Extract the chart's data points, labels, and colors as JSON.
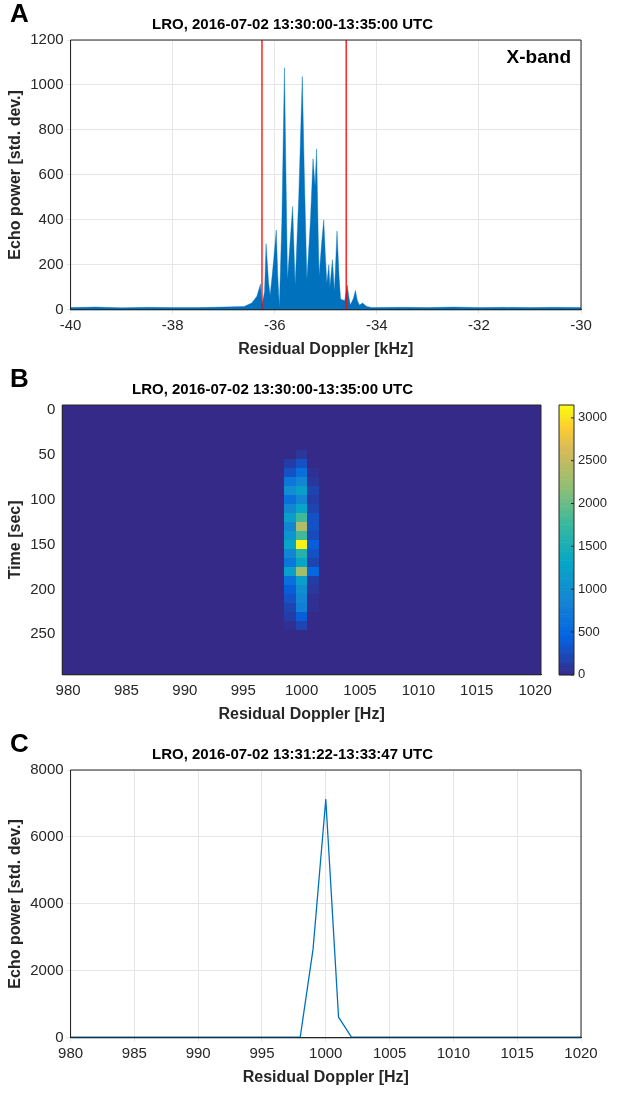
{
  "chart_data": [
    {
      "type": "area",
      "title": "LRO, 2016-07-02 13:30:00-13:35:00 UTC",
      "xlabel": "Residual Doppler [kHz]",
      "ylabel": "Echo power [std. dev.]",
      "x": [
        -40,
        -39.5,
        -39,
        -38.5,
        -38,
        -37.5,
        -37,
        -36.6,
        -36.45,
        -36.35,
        -36.28,
        -36.25,
        -36.2,
        -36.17,
        -36.12,
        -36.09,
        -36.03,
        -35.97,
        -35.94,
        -35.91,
        -35.86,
        -35.81,
        -35.78,
        -35.75,
        -35.7,
        -35.65,
        -35.62,
        -35.6,
        -35.53,
        -35.46,
        -35.42,
        -35.37,
        -35.3,
        -35.25,
        -35.21,
        -35.18,
        -35.15,
        -35.13,
        -35.08,
        -35.04,
        -35.01,
        -34.98,
        -34.94,
        -34.92,
        -34.87,
        -34.83,
        -34.78,
        -34.74,
        -34.71,
        -34.63,
        -34.58,
        -34.55,
        -34.52,
        -34.46,
        -34.42,
        -34.38,
        -34.34,
        -34.28,
        -34.2,
        -34.1,
        -33.5,
        -33,
        -32.5,
        -32,
        -31.5,
        -31,
        -30.5,
        -30
      ],
      "series": [
        {
          "color": "#0072bd",
          "values": [
            10,
            12,
            9,
            11,
            10,
            10,
            12,
            15,
            30,
            60,
            114,
            20,
            80,
            294,
            120,
            65,
            200,
            355,
            150,
            12,
            400,
            1077,
            600,
            135,
            300,
            460,
            250,
            110,
            500,
            1038,
            600,
            135,
            400,
            672,
            550,
            716,
            350,
            153,
            300,
            400,
            250,
            118,
            200,
            100,
            223,
            83,
            350,
            150,
            48,
            40,
            109,
            60,
            21,
            50,
            86,
            40,
            21,
            30,
            15,
            10,
            11,
            10,
            12,
            10,
            11,
            10,
            11,
            10
          ]
        }
      ],
      "xlim": [
        -40,
        -30
      ],
      "xticks": [
        -40,
        -38,
        -36,
        -34,
        -32,
        -30
      ],
      "ylim": [
        0,
        1200
      ],
      "yticks": [
        0,
        200,
        400,
        600,
        800,
        1000,
        1200
      ],
      "grid": true,
      "ref_lines": [
        {
          "axis": "x",
          "value": -36.25,
          "color": "#ff0000"
        },
        {
          "axis": "x",
          "value": -34.6,
          "color": "#ff0000"
        }
      ],
      "annotations": [
        "A",
        "X-band"
      ]
    },
    {
      "type": "heatmap",
      "title": "LRO, 2016-07-02 13:30:00-13:35:00 UTC",
      "xlabel": "Residual Doppler [Hz]",
      "ylabel": "Time [sec]",
      "categories": [
        "980",
        null,
        null,
        null,
        null,
        "985",
        null,
        null,
        null,
        null,
        "990",
        null,
        null,
        null,
        null,
        "995",
        null,
        null,
        null,
        null,
        "1000",
        null,
        null,
        null,
        null,
        "1005",
        null,
        null,
        null,
        null,
        "1010",
        null,
        null,
        null,
        null,
        "1015",
        null,
        null,
        null,
        null,
        "1020"
      ],
      "y_categories": [
        "0",
        null,
        null,
        null,
        null,
        "50",
        null,
        null,
        null,
        null,
        "100",
        null,
        null,
        null,
        null,
        "150",
        null,
        null,
        null,
        null,
        "200",
        null,
        null,
        null,
        null,
        "250",
        null,
        null,
        null,
        null
      ],
      "cells": [
        [
          0,
          0,
          0,
          0,
          0,
          0,
          0,
          0,
          0,
          0,
          0,
          0,
          0,
          0,
          0,
          0,
          0,
          0,
          0,
          0,
          0,
          0,
          0,
          0,
          0,
          0,
          0,
          0,
          0,
          0,
          0,
          0,
          0,
          0,
          0,
          0,
          0,
          0,
          0,
          0,
          0
        ],
        [
          0,
          0,
          0,
          0,
          0,
          0,
          0,
          0,
          0,
          0,
          0,
          0,
          0,
          0,
          0,
          0,
          0,
          0,
          0,
          0,
          0,
          0,
          0,
          0,
          0,
          0,
          0,
          0,
          0,
          0,
          0,
          0,
          0,
          0,
          0,
          0,
          0,
          0,
          0,
          0,
          0
        ],
        [
          0,
          0,
          0,
          0,
          0,
          0,
          0,
          0,
          0,
          0,
          0,
          0,
          0,
          0,
          0,
          0,
          0,
          0,
          0,
          0,
          0,
          0,
          0,
          0,
          0,
          0,
          0,
          0,
          0,
          0,
          0,
          0,
          0,
          0,
          0,
          0,
          0,
          0,
          0,
          0,
          0
        ],
        [
          0,
          0,
          0,
          0,
          0,
          0,
          0,
          0,
          0,
          0,
          0,
          0,
          0,
          0,
          0,
          0,
          0,
          0,
          0,
          0,
          0,
          0,
          0,
          0,
          0,
          0,
          0,
          0,
          0,
          0,
          0,
          0,
          0,
          0,
          0,
          0,
          0,
          0,
          0,
          0,
          0
        ],
        [
          0,
          0,
          0,
          0,
          0,
          0,
          0,
          0,
          0,
          0,
          0,
          0,
          0,
          0,
          0,
          0,
          0,
          0,
          0,
          0,
          0,
          0,
          0,
          0,
          0,
          0,
          0,
          0,
          0,
          0,
          0,
          0,
          0,
          0,
          0,
          0,
          0,
          0,
          0,
          0,
          0
        ],
        [
          0,
          0,
          0,
          0,
          0,
          0,
          0,
          0,
          0,
          0,
          0,
          0,
          0,
          0,
          0,
          0,
          0,
          0,
          0,
          0,
          100,
          0,
          0,
          0,
          0,
          0,
          0,
          0,
          0,
          0,
          0,
          0,
          0,
          0,
          0,
          0,
          0,
          0,
          0,
          0,
          0
        ],
        [
          0,
          0,
          0,
          0,
          0,
          0,
          0,
          0,
          0,
          0,
          0,
          0,
          0,
          0,
          0,
          0,
          0,
          0,
          0,
          150,
          300,
          0,
          0,
          0,
          0,
          0,
          0,
          0,
          0,
          0,
          0,
          0,
          0,
          0,
          0,
          0,
          0,
          0,
          0,
          0,
          0
        ],
        [
          0,
          0,
          0,
          0,
          0,
          0,
          0,
          0,
          0,
          0,
          0,
          0,
          0,
          0,
          0,
          0,
          0,
          0,
          0,
          300,
          600,
          50,
          0,
          0,
          0,
          0,
          0,
          0,
          0,
          0,
          0,
          0,
          0,
          0,
          0,
          0,
          0,
          0,
          0,
          0,
          0
        ],
        [
          0,
          0,
          0,
          0,
          0,
          0,
          0,
          0,
          0,
          0,
          0,
          0,
          0,
          0,
          0,
          0,
          0,
          0,
          0,
          700,
          900,
          100,
          0,
          0,
          0,
          0,
          0,
          0,
          0,
          0,
          0,
          0,
          0,
          0,
          0,
          0,
          0,
          0,
          0,
          0,
          0
        ],
        [
          0,
          0,
          0,
          0,
          0,
          0,
          0,
          0,
          0,
          0,
          0,
          0,
          0,
          0,
          0,
          0,
          0,
          0,
          0,
          1000,
          1200,
          200,
          0,
          0,
          0,
          0,
          0,
          0,
          0,
          0,
          0,
          0,
          0,
          0,
          0,
          0,
          0,
          0,
          0,
          0,
          0
        ],
        [
          0,
          0,
          0,
          0,
          0,
          0,
          0,
          0,
          0,
          0,
          0,
          0,
          0,
          0,
          0,
          0,
          0,
          0,
          0,
          600,
          900,
          150,
          0,
          0,
          0,
          0,
          0,
          0,
          0,
          0,
          0,
          0,
          0,
          0,
          0,
          0,
          0,
          0,
          0,
          0,
          0
        ],
        [
          0,
          0,
          0,
          0,
          0,
          0,
          0,
          0,
          0,
          0,
          0,
          0,
          0,
          0,
          0,
          0,
          0,
          0,
          0,
          900,
          1300,
          200,
          0,
          0,
          0,
          0,
          0,
          0,
          0,
          0,
          0,
          0,
          0,
          0,
          0,
          0,
          0,
          0,
          0,
          0,
          0
        ],
        [
          0,
          0,
          0,
          0,
          0,
          0,
          0,
          0,
          0,
          0,
          0,
          0,
          0,
          0,
          0,
          0,
          0,
          0,
          0,
          1200,
          1800,
          300,
          0,
          0,
          0,
          0,
          0,
          0,
          0,
          0,
          0,
          0,
          0,
          0,
          0,
          0,
          0,
          0,
          0,
          0,
          0
        ],
        [
          0,
          0,
          0,
          0,
          0,
          0,
          0,
          0,
          0,
          0,
          0,
          0,
          0,
          0,
          0,
          0,
          0,
          0,
          0,
          900,
          2400,
          300,
          0,
          0,
          0,
          0,
          0,
          0,
          0,
          0,
          0,
          0,
          0,
          0,
          0,
          0,
          0,
          0,
          0,
          0,
          0
        ],
        [
          0,
          0,
          0,
          0,
          0,
          0,
          0,
          0,
          0,
          0,
          0,
          0,
          0,
          0,
          0,
          0,
          0,
          0,
          0,
          1100,
          1800,
          250,
          0,
          0,
          0,
          0,
          0,
          0,
          0,
          0,
          0,
          0,
          0,
          0,
          0,
          0,
          0,
          0,
          0,
          0,
          0
        ],
        [
          0,
          0,
          0,
          0,
          0,
          0,
          0,
          0,
          0,
          0,
          0,
          0,
          0,
          0,
          0,
          0,
          0,
          0,
          0,
          1300,
          3100,
          400,
          0,
          0,
          0,
          0,
          0,
          0,
          0,
          0,
          0,
          0,
          0,
          0,
          0,
          0,
          0,
          0,
          0,
          0,
          0
        ],
        [
          0,
          0,
          0,
          0,
          0,
          0,
          0,
          0,
          0,
          0,
          0,
          0,
          0,
          0,
          0,
          0,
          0,
          0,
          0,
          900,
          1600,
          300,
          0,
          0,
          0,
          0,
          0,
          0,
          0,
          0,
          0,
          0,
          0,
          0,
          0,
          0,
          0,
          0,
          0,
          0,
          0
        ],
        [
          0,
          0,
          0,
          0,
          0,
          0,
          0,
          0,
          0,
          0,
          0,
          0,
          0,
          0,
          0,
          0,
          0,
          0,
          0,
          700,
          1300,
          200,
          0,
          0,
          0,
          0,
          0,
          0,
          0,
          0,
          0,
          0,
          0,
          0,
          0,
          0,
          0,
          0,
          0,
          0,
          0
        ],
        [
          0,
          0,
          0,
          0,
          0,
          0,
          0,
          0,
          0,
          0,
          0,
          0,
          0,
          0,
          0,
          0,
          0,
          0,
          0,
          1200,
          2300,
          500,
          0,
          0,
          0,
          0,
          0,
          0,
          0,
          0,
          0,
          0,
          0,
          0,
          0,
          0,
          0,
          0,
          0,
          0,
          0
        ],
        [
          0,
          0,
          0,
          0,
          0,
          0,
          0,
          0,
          0,
          0,
          0,
          0,
          0,
          0,
          0,
          0,
          0,
          0,
          0,
          600,
          1200,
          150,
          0,
          0,
          0,
          0,
          0,
          0,
          0,
          0,
          0,
          0,
          0,
          0,
          0,
          0,
          0,
          0,
          0,
          0,
          0
        ],
        [
          0,
          0,
          0,
          0,
          0,
          0,
          0,
          0,
          0,
          0,
          0,
          0,
          0,
          0,
          0,
          0,
          0,
          0,
          0,
          400,
          1000,
          100,
          0,
          0,
          0,
          0,
          0,
          0,
          0,
          0,
          0,
          0,
          0,
          0,
          0,
          0,
          0,
          0,
          0,
          0,
          0
        ],
        [
          0,
          0,
          0,
          0,
          0,
          0,
          0,
          0,
          0,
          0,
          0,
          0,
          0,
          0,
          0,
          0,
          0,
          0,
          0,
          300,
          900,
          50,
          0,
          0,
          0,
          0,
          0,
          0,
          0,
          0,
          0,
          0,
          0,
          0,
          0,
          0,
          0,
          0,
          0,
          0,
          0
        ],
        [
          0,
          0,
          0,
          0,
          0,
          0,
          0,
          0,
          0,
          0,
          0,
          0,
          0,
          0,
          0,
          0,
          0,
          0,
          0,
          200,
          800,
          50,
          0,
          0,
          0,
          0,
          0,
          0,
          0,
          0,
          0,
          0,
          0,
          0,
          0,
          0,
          0,
          0,
          0,
          0,
          0
        ],
        [
          0,
          0,
          0,
          0,
          0,
          0,
          0,
          0,
          0,
          0,
          0,
          0,
          0,
          0,
          0,
          0,
          0,
          0,
          0,
          150,
          400,
          0,
          0,
          0,
          0,
          0,
          0,
          0,
          0,
          0,
          0,
          0,
          0,
          0,
          0,
          0,
          0,
          0,
          0,
          0,
          0
        ],
        [
          0,
          0,
          0,
          0,
          0,
          0,
          0,
          0,
          0,
          0,
          0,
          0,
          0,
          0,
          0,
          0,
          0,
          0,
          0,
          50,
          200,
          0,
          0,
          0,
          0,
          0,
          0,
          0,
          0,
          0,
          0,
          0,
          0,
          0,
          0,
          0,
          0,
          0,
          0,
          0,
          0
        ],
        [
          0,
          0,
          0,
          0,
          0,
          0,
          0,
          0,
          0,
          0,
          0,
          0,
          0,
          0,
          0,
          0,
          0,
          0,
          0,
          0,
          0,
          0,
          0,
          0,
          0,
          0,
          0,
          0,
          0,
          0,
          0,
          0,
          0,
          0,
          0,
          0,
          0,
          0,
          0,
          0,
          0
        ],
        [
          0,
          0,
          0,
          0,
          0,
          0,
          0,
          0,
          0,
          0,
          0,
          0,
          0,
          0,
          0,
          0,
          0,
          0,
          0,
          0,
          0,
          0,
          0,
          0,
          0,
          0,
          0,
          0,
          0,
          0,
          0,
          0,
          0,
          0,
          0,
          0,
          0,
          0,
          0,
          0,
          0
        ],
        [
          0,
          0,
          0,
          0,
          0,
          0,
          0,
          0,
          0,
          0,
          0,
          0,
          0,
          0,
          0,
          0,
          0,
          0,
          0,
          0,
          0,
          0,
          0,
          0,
          0,
          0,
          0,
          0,
          0,
          0,
          0,
          0,
          0,
          0,
          0,
          0,
          0,
          0,
          0,
          0,
          0
        ],
        [
          0,
          0,
          0,
          0,
          0,
          0,
          0,
          0,
          0,
          0,
          0,
          0,
          0,
          0,
          0,
          0,
          0,
          0,
          0,
          0,
          0,
          0,
          0,
          0,
          0,
          0,
          0,
          0,
          0,
          0,
          0,
          0,
          0,
          0,
          0,
          0,
          0,
          0,
          0,
          0,
          0
        ],
        [
          0,
          0,
          0,
          0,
          0,
          0,
          0,
          0,
          0,
          0,
          0,
          0,
          0,
          0,
          0,
          0,
          0,
          0,
          0,
          0,
          0,
          0,
          0,
          0,
          0,
          0,
          0,
          0,
          0,
          0,
          0,
          0,
          0,
          0,
          0,
          0,
          0,
          0,
          0,
          0,
          0
        ]
      ],
      "clim": [
        0,
        3150
      ],
      "cticks": [
        0,
        500,
        1000,
        1500,
        2000,
        2500,
        3000
      ],
      "annotations": [
        "B"
      ]
    },
    {
      "type": "line",
      "title": "LRO, 2016-07-02 13:31:22-13:33:47 UTC",
      "xlabel": "Residual Doppler [Hz]",
      "ylabel": "Echo power [std. dev.]",
      "x": [
        980,
        981,
        982,
        983,
        984,
        985,
        986,
        987,
        988,
        989,
        990,
        991,
        992,
        993,
        994,
        995,
        996,
        997,
        998,
        999,
        1000,
        1001,
        1002,
        1003,
        1004,
        1005,
        1006,
        1007,
        1008,
        1009,
        1010,
        1011,
        1012,
        1013,
        1014,
        1015,
        1016,
        1017,
        1018,
        1019,
        1020
      ],
      "series": [
        {
          "color": "#0072bd",
          "values": [
            20,
            20,
            20,
            20,
            20,
            20,
            20,
            20,
            20,
            20,
            20,
            20,
            20,
            20,
            20,
            20,
            20,
            20,
            30,
            2640,
            7120,
            620,
            30,
            20,
            20,
            20,
            20,
            20,
            20,
            20,
            20,
            20,
            20,
            20,
            20,
            20,
            20,
            20,
            20,
            20,
            20
          ]
        }
      ],
      "xlim": [
        980,
        1020
      ],
      "xticks": [
        980,
        985,
        990,
        995,
        1000,
        1005,
        1010,
        1015,
        1020
      ],
      "ylim": [
        0,
        8000
      ],
      "yticks": [
        0,
        2000,
        4000,
        6000,
        8000
      ],
      "grid": true,
      "marker": "none",
      "annotations": [
        "C"
      ]
    }
  ]
}
